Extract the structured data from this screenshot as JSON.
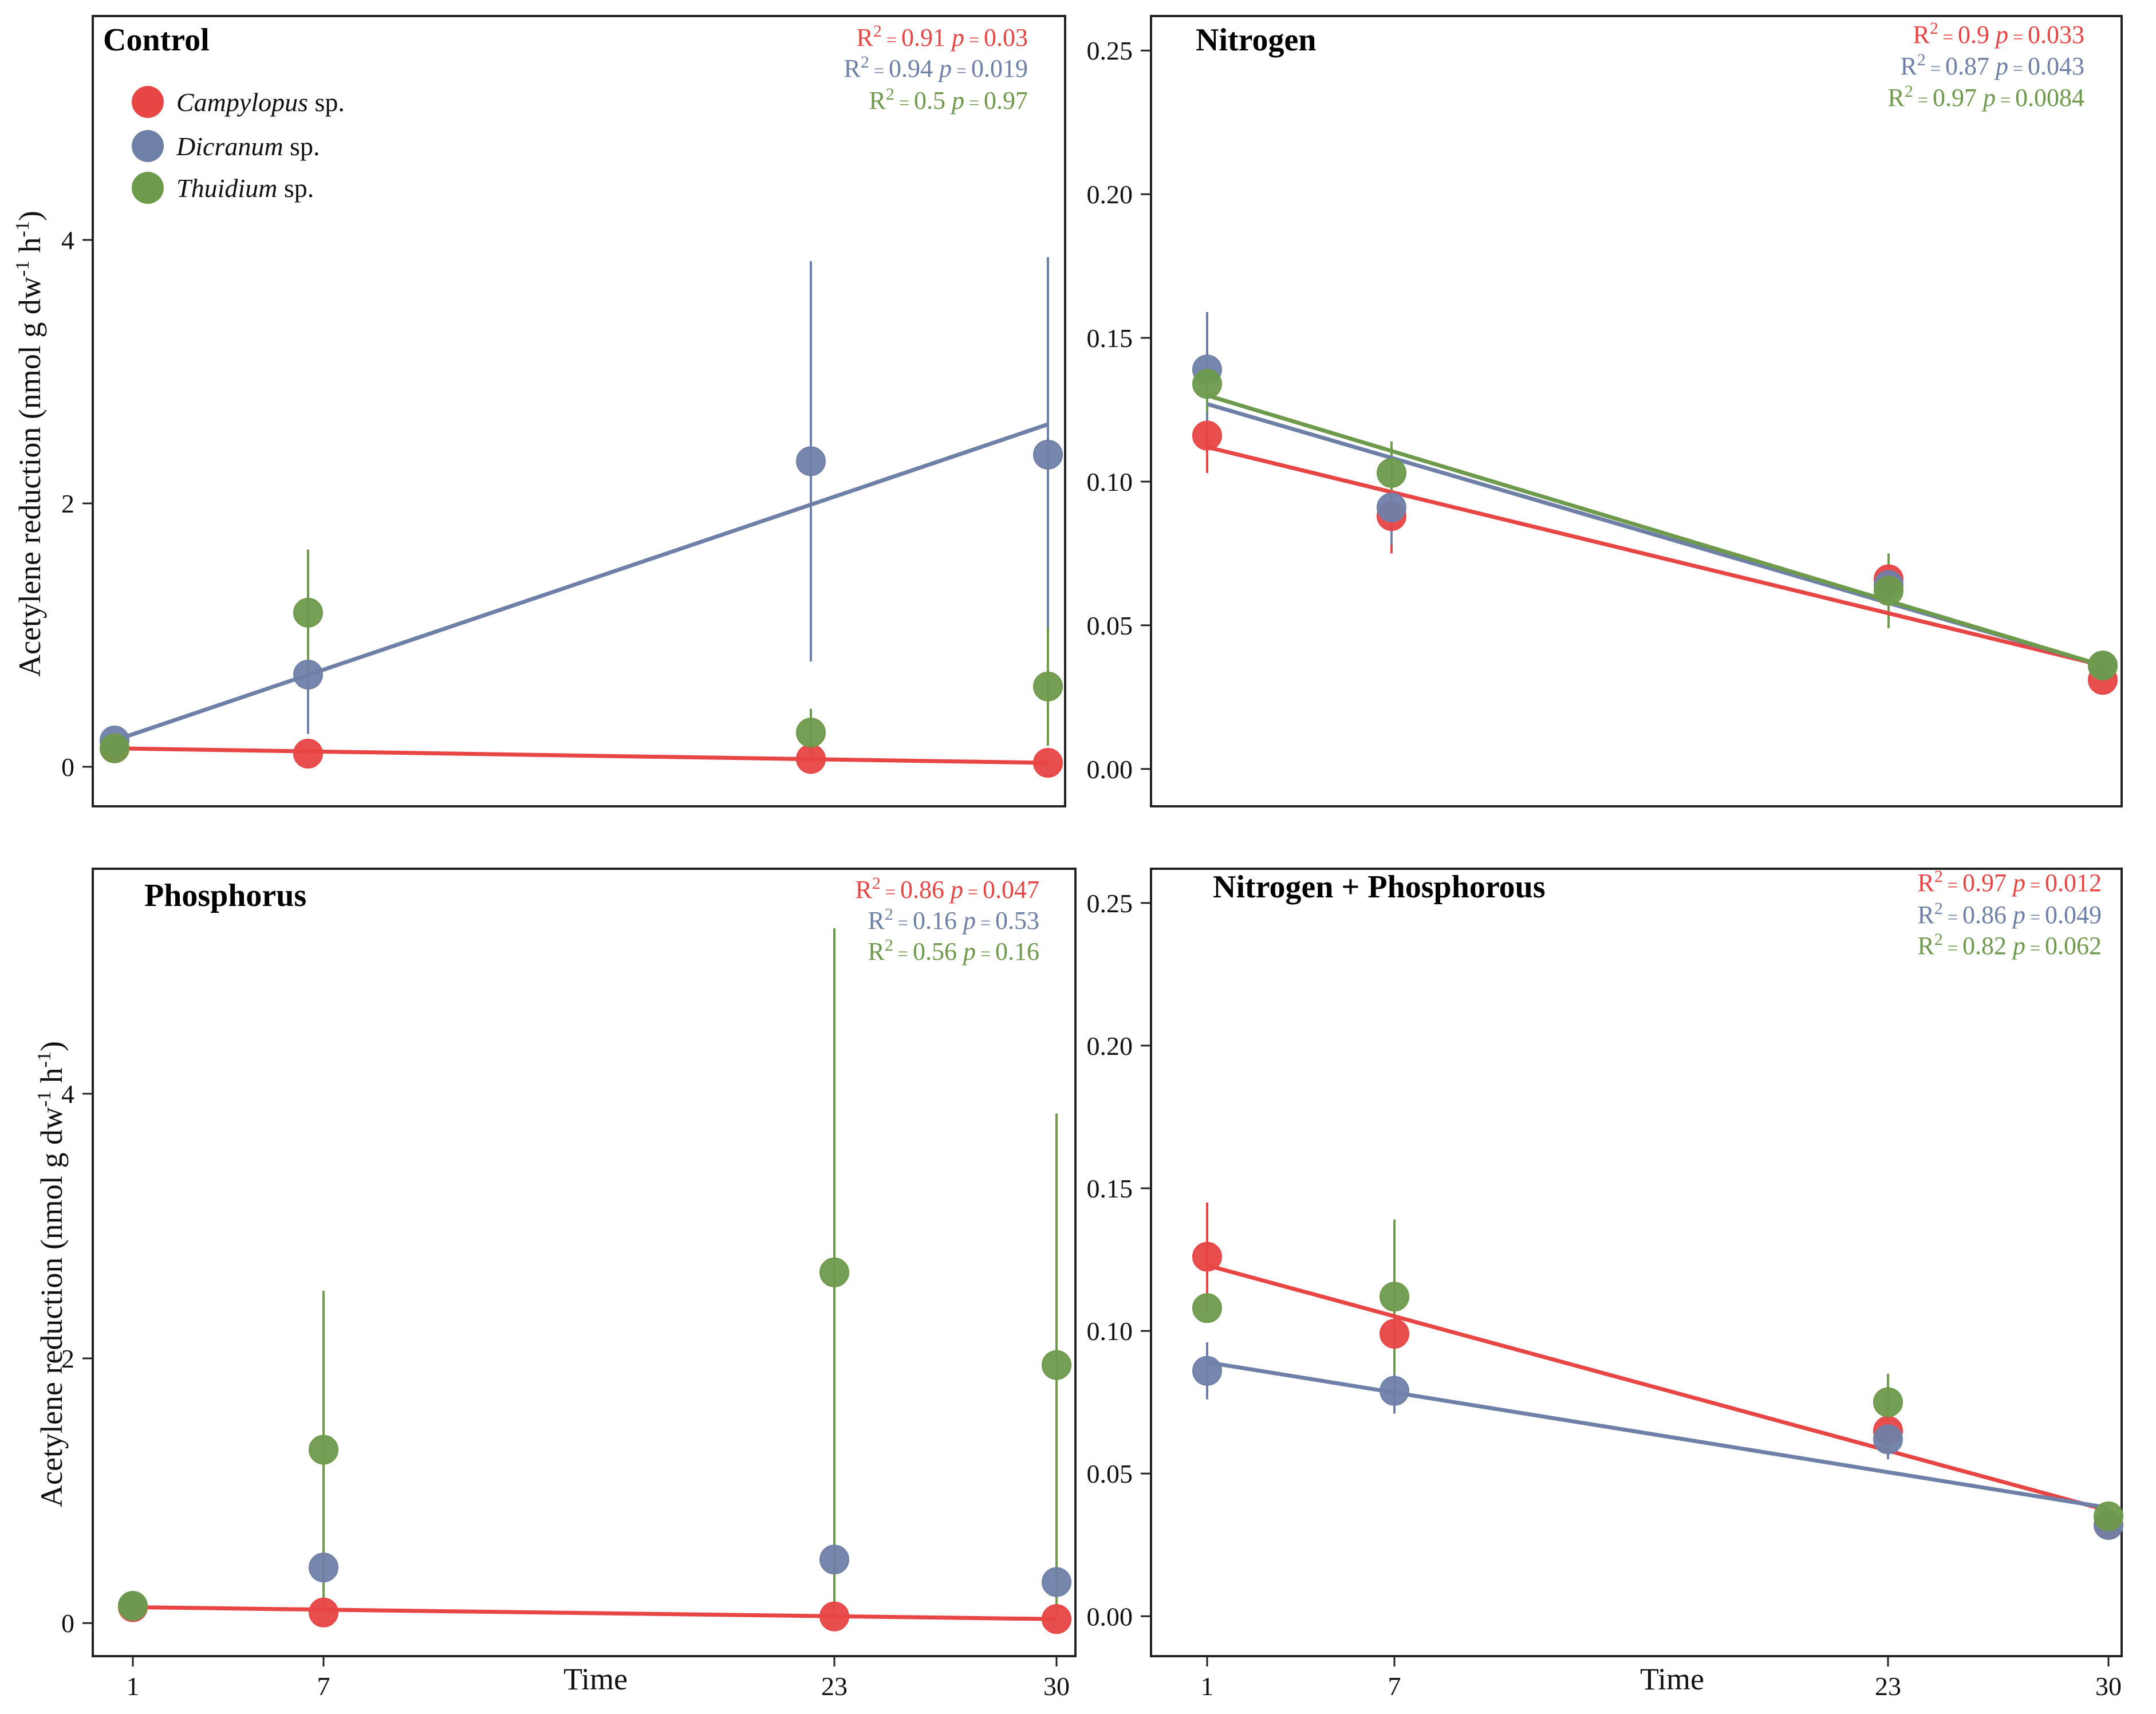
{
  "figure": {
    "ylabel_parts": [
      "Acetylene reduction (nmol g dw",
      "-1",
      " h",
      "-1",
      ")"
    ],
    "xlabel": "Time",
    "legend": [
      {
        "label": "Campylopus",
        "suffix": " sp.",
        "color": "#e84545"
      },
      {
        "label": "Dicranum",
        "suffix": " sp.",
        "color": "#6f80a8"
      },
      {
        "label": "Thuidium",
        "suffix": " sp.",
        "color": "#6e9a4b"
      }
    ],
    "colors": {
      "Campylopus": "#e84545",
      "Dicranum": "#6f80a8",
      "Thuidium": "#6e9a4b"
    }
  },
  "chart_data": [
    {
      "type": "scatter",
      "title": "Control",
      "x": [
        1,
        7,
        23,
        30
      ],
      "xticks": [],
      "xlim": [
        0,
        31
      ],
      "ylim": [
        -0.3,
        5.7
      ],
      "yticks": [
        0,
        2,
        4
      ],
      "ytick_labels": [
        "0",
        "2",
        "4"
      ],
      "series": [
        {
          "name": "Campylopus sp.",
          "color": "#e84545",
          "values": [
            0.14,
            0.1,
            0.06,
            0.03
          ],
          "errors": [
            0,
            0,
            0,
            0
          ],
          "fit": [
            0.14,
            0.03
          ],
          "stats": {
            "r2": "0.91",
            "p": "0.03"
          }
        },
        {
          "name": "Dicranum sp.",
          "color": "#6f80a8",
          "values": [
            0.2,
            0.7,
            2.32,
            2.37
          ],
          "errors": [
            0,
            0.45,
            1.52,
            1.5
          ],
          "fit": [
            0.2,
            2.6
          ],
          "stats": {
            "r2": "0.94",
            "p": "0.019"
          }
        },
        {
          "name": "Thuidium sp.",
          "color": "#6e9a4b",
          "values": [
            0.14,
            1.17,
            0.26,
            0.61
          ],
          "errors": [
            0,
            0.48,
            0.18,
            0.45
          ],
          "fit": null,
          "stats": {
            "r2": "0.5",
            "p": "0.97"
          }
        }
      ]
    },
    {
      "type": "scatter",
      "title": "Nitrogen",
      "x": [
        1,
        7,
        23,
        30
      ],
      "xticks": [],
      "xlim": [
        0,
        31
      ],
      "ylim": [
        -0.013,
        0.262
      ],
      "yticks": [
        0,
        0.05,
        0.1,
        0.15,
        0.2,
        0.25
      ],
      "ytick_labels": [
        "0.00",
        "0.05",
        "0.10",
        "0.15",
        "0.20",
        "0.25"
      ],
      "series": [
        {
          "name": "Campylopus sp.",
          "color": "#e84545",
          "values": [
            0.116,
            0.088,
            0.066,
            0.031
          ],
          "errors": [
            0.013,
            0.013,
            0,
            0
          ],
          "fit": [
            0.112,
            0.036
          ],
          "stats": {
            "r2": "0.9",
            "p": "0.033"
          }
        },
        {
          "name": "Dicranum sp.",
          "color": "#6f80a8",
          "values": [
            0.139,
            0.091,
            0.064,
            0.036
          ],
          "errors": [
            0.02,
            0.013,
            0,
            0
          ],
          "fit": [
            0.127,
            0.036
          ],
          "stats": {
            "r2": "0.87",
            "p": "0.043"
          }
        },
        {
          "name": "Thuidium sp.",
          "color": "#6e9a4b",
          "values": [
            0.134,
            0.103,
            0.062,
            0.036
          ],
          "errors": [
            0.01,
            0.011,
            0.013,
            0
          ],
          "fit": [
            0.13,
            0.036
          ],
          "stats": {
            "r2": "0.97",
            "p": "0.0084"
          }
        }
      ]
    },
    {
      "type": "scatter",
      "title": "Phosphorus",
      "x": [
        1,
        7,
        23,
        30
      ],
      "xticks": [
        "1",
        "7",
        "23",
        "30"
      ],
      "xlim": [
        0,
        31
      ],
      "ylim": [
        -0.25,
        5.7
      ],
      "yticks": [
        0,
        2,
        4
      ],
      "ytick_labels": [
        "0",
        "2",
        "4"
      ],
      "series": [
        {
          "name": "Campylopus sp.",
          "color": "#e84545",
          "values": [
            0.12,
            0.08,
            0.05,
            0.03
          ],
          "errors": [
            0,
            0,
            0,
            0
          ],
          "fit": [
            0.12,
            0.03
          ],
          "stats": {
            "r2": "0.86",
            "p": "0.047"
          }
        },
        {
          "name": "Dicranum sp.",
          "color": "#6f80a8",
          "values": [
            0.13,
            0.42,
            0.48,
            0.31
          ],
          "errors": [
            0,
            0,
            0,
            0
          ],
          "fit": null,
          "stats": {
            "r2": "0.16",
            "p": "0.53"
          }
        },
        {
          "name": "Thuidium sp.",
          "color": "#6e9a4b",
          "values": [
            0.13,
            1.31,
            2.65,
            1.95
          ],
          "errors": [
            0,
            1.2,
            2.6,
            1.9
          ],
          "fit": null,
          "stats": {
            "r2": "0.56",
            "p": "0.16"
          }
        }
      ]
    },
    {
      "type": "scatter",
      "title": "Nitrogen + Phosphorous",
      "x": [
        1,
        7,
        23,
        30
      ],
      "xticks": [
        "1",
        "7",
        "23",
        "30"
      ],
      "xlim": [
        0,
        31
      ],
      "ylim": [
        -0.014,
        0.262
      ],
      "yticks": [
        0,
        0.05,
        0.1,
        0.15,
        0.2,
        0.25
      ],
      "ytick_labels": [
        "0.00",
        "0.05",
        "0.10",
        "0.15",
        "0.20",
        "0.25"
      ],
      "series": [
        {
          "name": "Campylopus sp.",
          "color": "#e84545",
          "values": [
            0.126,
            0.099,
            0.065,
            0.032
          ],
          "errors": [
            0.019,
            0,
            0,
            0
          ],
          "fit": [
            0.123,
            0.037
          ],
          "stats": {
            "r2": "0.97",
            "p": "0.012"
          }
        },
        {
          "name": "Dicranum sp.",
          "color": "#6f80a8",
          "values": [
            0.086,
            0.079,
            0.062,
            0.032
          ],
          "errors": [
            0.01,
            0.008,
            0.007,
            0
          ],
          "fit": [
            0.089,
            0.038
          ],
          "stats": {
            "r2": "0.86",
            "p": "0.049"
          }
        },
        {
          "name": "Thuidium sp.",
          "color": "#6e9a4b",
          "values": [
            0.108,
            0.112,
            0.075,
            0.035
          ],
          "errors": [
            0,
            0.027,
            0.01,
            0
          ],
          "fit": null,
          "stats": {
            "r2": "0.82",
            "p": "0.062"
          }
        }
      ]
    }
  ]
}
